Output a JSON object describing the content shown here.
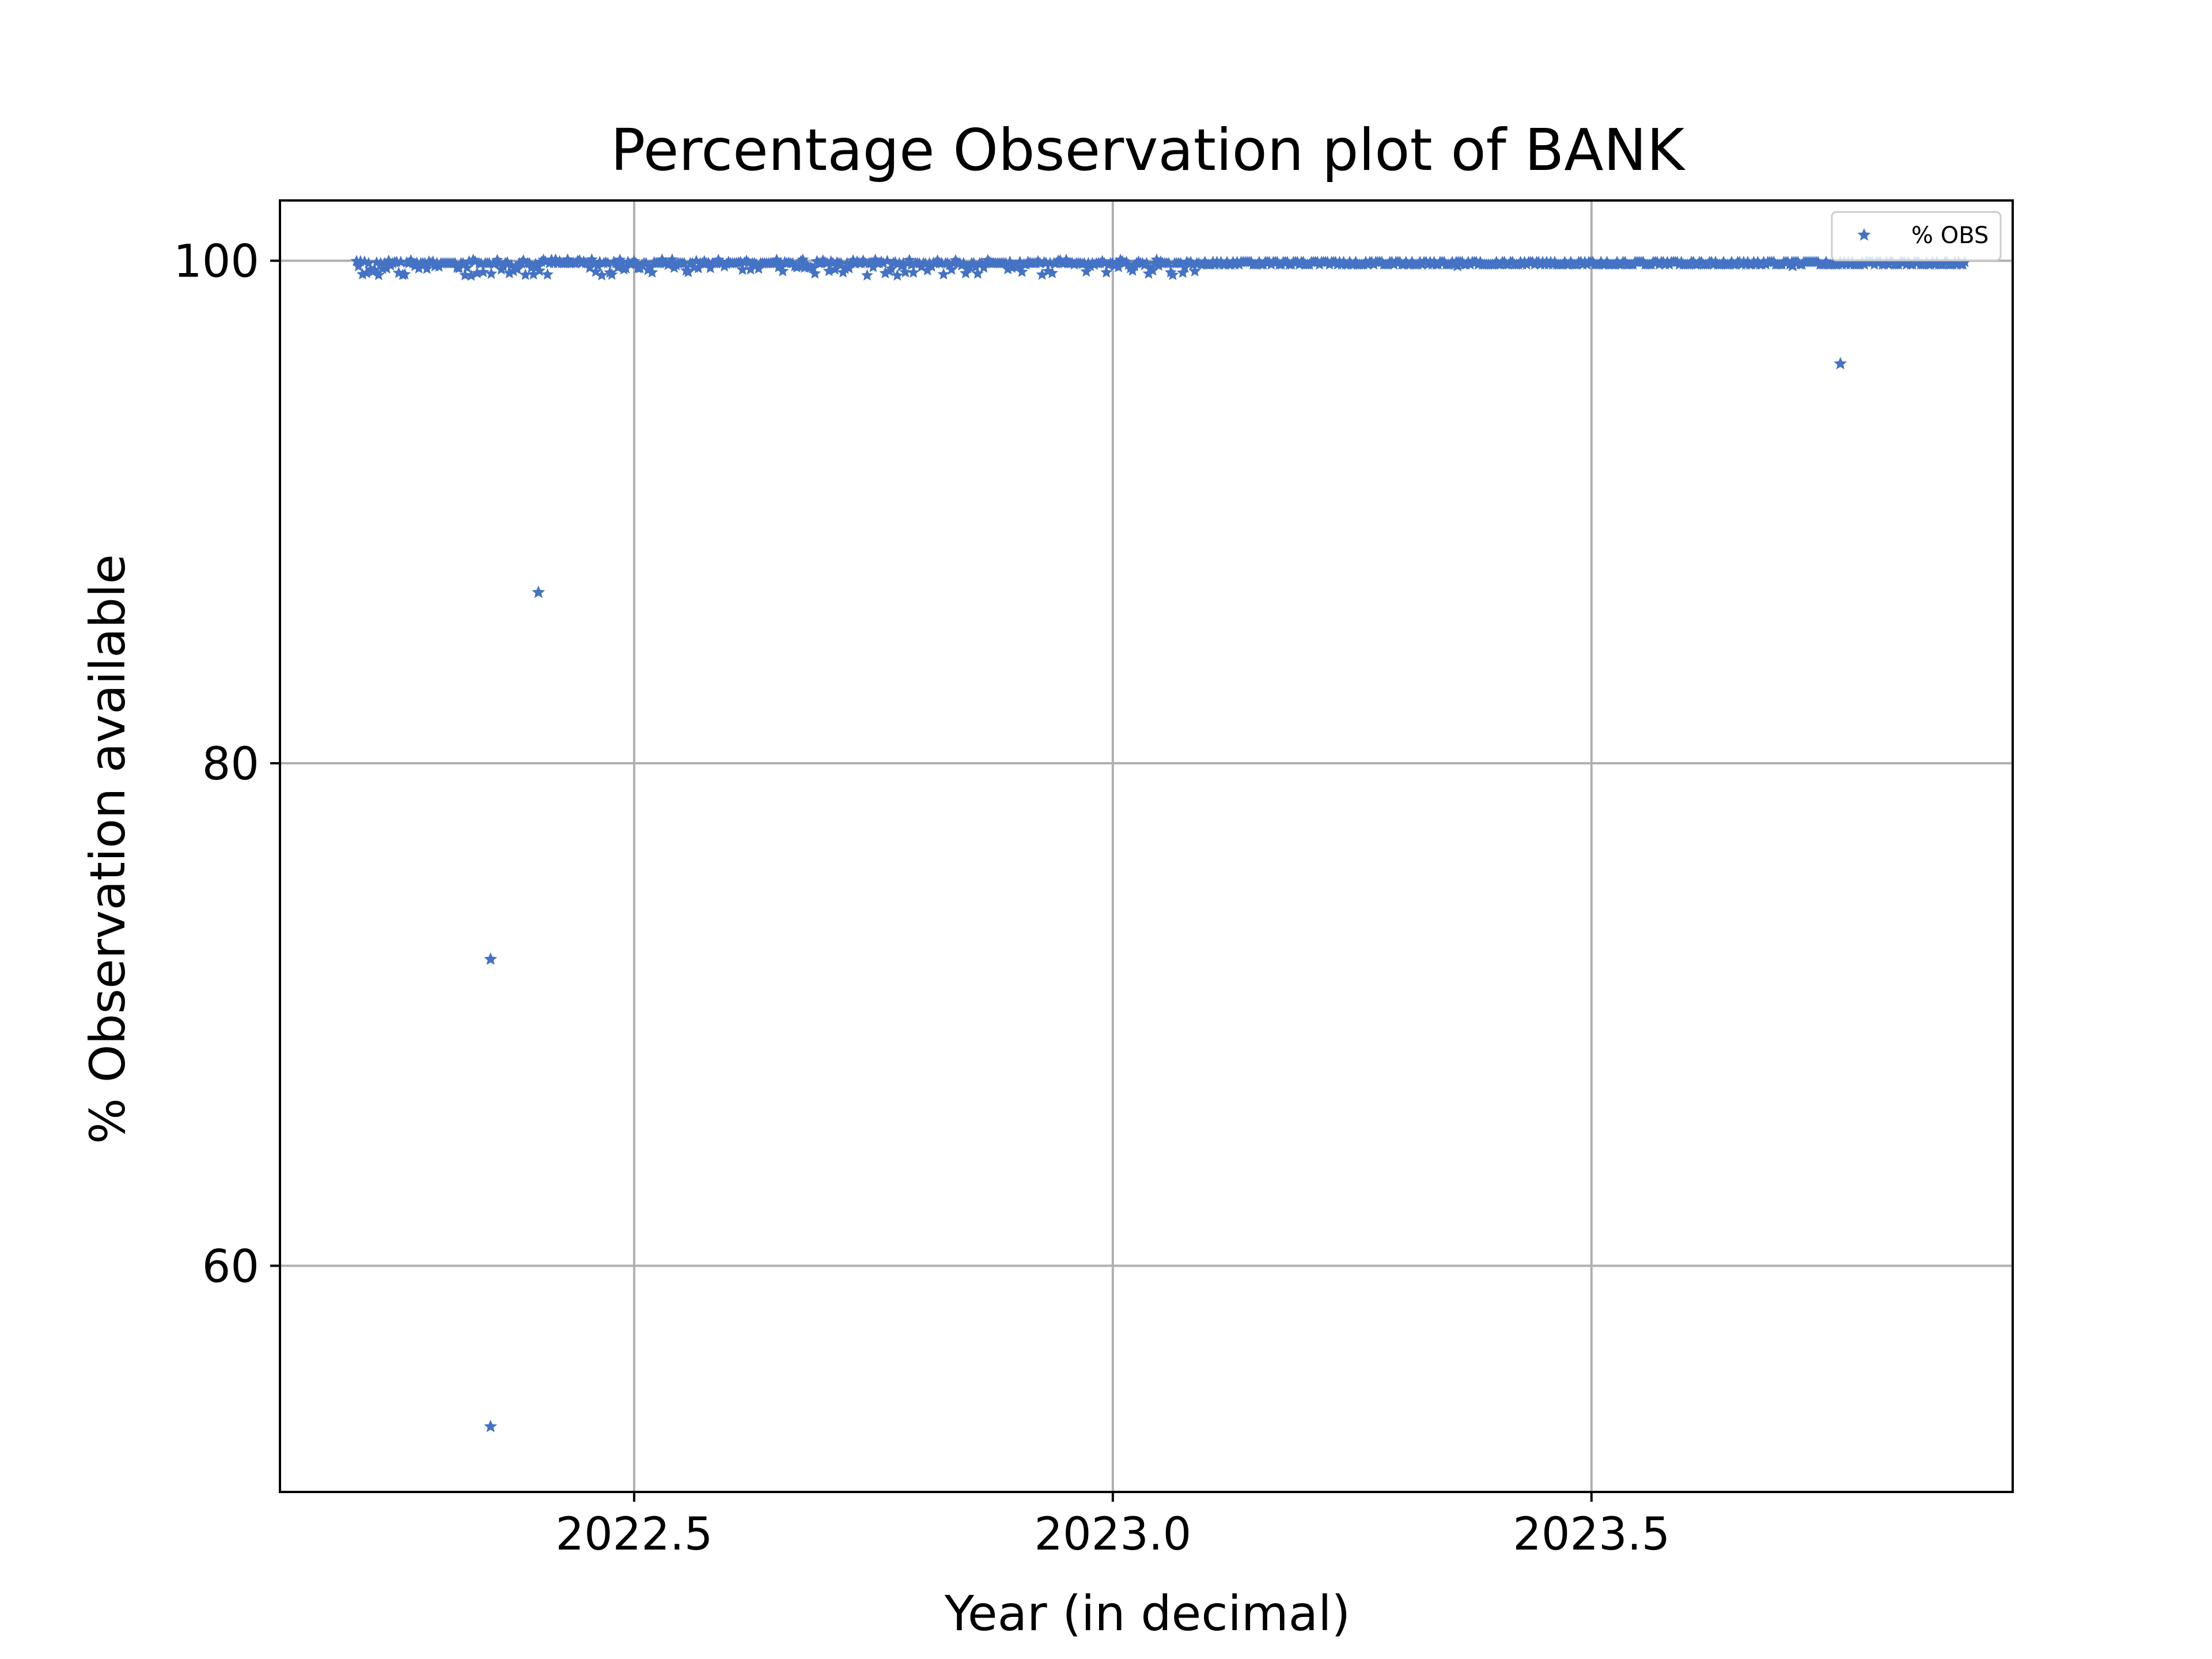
{
  "chart_data": {
    "type": "scatter",
    "title": "Percentage Observation plot of BANK",
    "xlabel": "Year (in decimal)",
    "ylabel": "% Observation available",
    "xlim": [
      2022.13,
      2023.94
    ],
    "ylim": [
      51.0,
      102.4
    ],
    "xticks": [
      2022.5,
      2023.0,
      2023.5
    ],
    "xtick_labels": [
      "2022.5",
      "2023.0",
      "2023.5"
    ],
    "yticks": [
      60,
      80,
      100
    ],
    "ytick_labels": [
      "60",
      "80",
      "100"
    ],
    "grid": true,
    "legend_position": "top-right",
    "colors": {
      "series": "#4472C4",
      "grid": "#b0b0b0",
      "axes": "#000000"
    },
    "marker": "pentagon-star",
    "series": [
      {
        "name": "% OBS",
        "dense_band": {
          "x_range": [
            2022.21,
            2023.89
          ],
          "typical_value": 99.9,
          "dip_value_min": 99.4,
          "dense_dip_x_range": [
            2022.21,
            2023.09
          ]
        },
        "outliers": [
          {
            "x": 2022.35,
            "y": 72.2
          },
          {
            "x": 2022.35,
            "y": 53.6
          },
          {
            "x": 2022.4,
            "y": 86.8
          },
          {
            "x": 2023.76,
            "y": 95.9
          },
          {
            "x": 2023.36,
            "y": 99.8
          },
          {
            "x": 2023.71,
            "y": 99.8
          }
        ]
      }
    ]
  }
}
